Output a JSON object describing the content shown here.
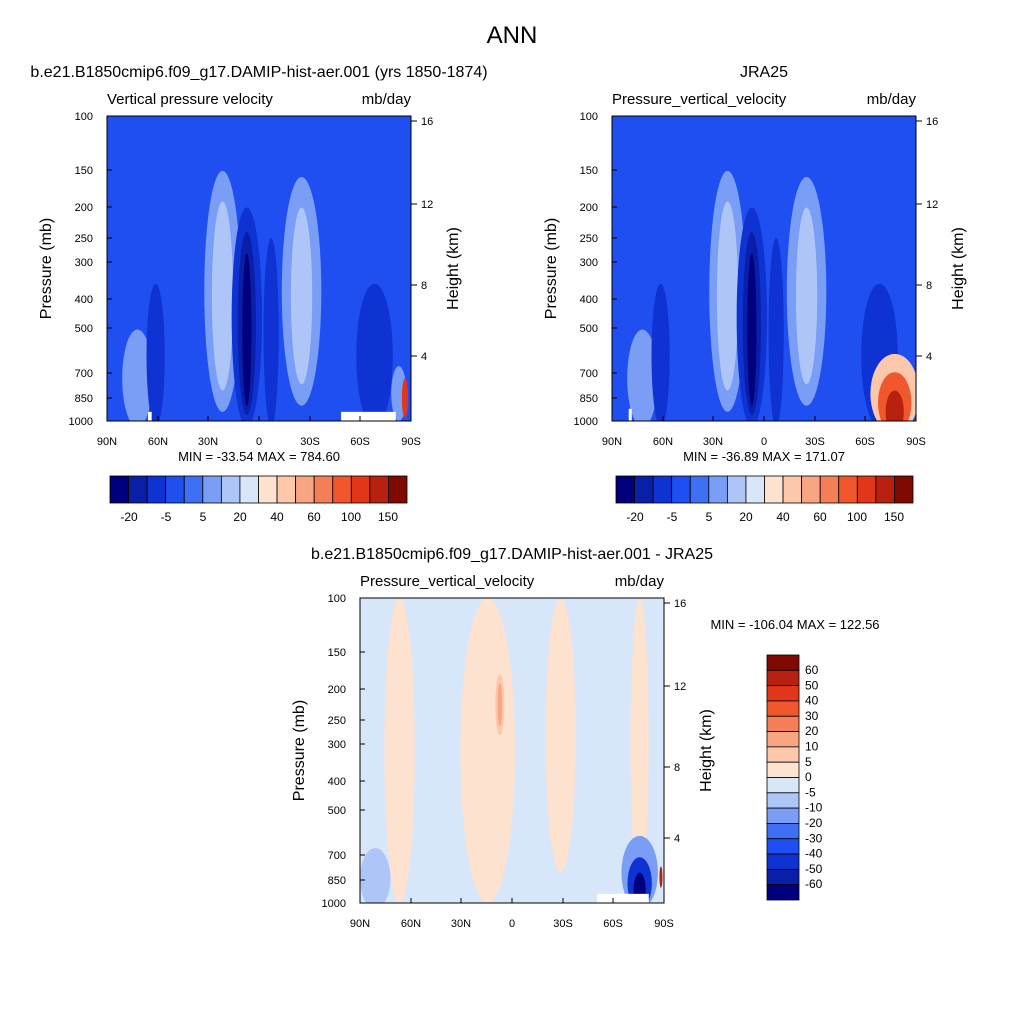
{
  "figure_title": "ANN",
  "panels": [
    {
      "title": "b.e21.B1850cmip6.f09_g17.DAMIP-hist-aer.001 (yrs 1850-1874)",
      "left_label": "Vertical pressure velocity",
      "right_label": "mb/day",
      "stats": "MIN = -33.54  MAX = 784.60",
      "colorbar_labels": [
        "-20",
        "-5",
        "5",
        "20",
        "40",
        "60",
        "100",
        "150"
      ]
    },
    {
      "title": "JRA25",
      "left_label": "Pressure_vertical_velocity",
      "right_label": "mb/day",
      "stats": "MIN = -36.89  MAX = 171.07",
      "colorbar_labels": [
        "-20",
        "-5",
        "5",
        "20",
        "40",
        "60",
        "100",
        "150"
      ]
    },
    {
      "title": "b.e21.B1850cmip6.f09_g17.DAMIP-hist-aer.001 - JRA25",
      "left_label": "Pressure_vertical_velocity",
      "right_label": "mb/day",
      "stats": "MIN = -106.04  MAX = 122.56",
      "colorbar_labels": [
        "60",
        "50",
        "40",
        "30",
        "20",
        "10",
        "5",
        "0",
        "-5",
        "-10",
        "-20",
        "-30",
        "-40",
        "-50",
        "-60"
      ]
    }
  ],
  "colors": {
    "abs_scale": [
      "#00007f",
      "#0a1fa8",
      "#0f32d2",
      "#1f4ff0",
      "#3f6ff5",
      "#7a9df6",
      "#adc6f7",
      "#d7e6f8",
      "#fde2d0",
      "#fcc7ab",
      "#f8a583",
      "#f47e56",
      "#f0572d",
      "#e2361b",
      "#b8200f",
      "#7f0a02"
    ],
    "diff_scale": [
      "#00007f",
      "#0a1fa8",
      "#0f32d2",
      "#1f4ff0",
      "#3f6ff5",
      "#7a9df6",
      "#adc6f7",
      "#d7e6f8",
      "#fde2d0",
      "#fcc7ab",
      "#f8a583",
      "#f47e56",
      "#f0572d",
      "#e2361b",
      "#b8200f",
      "#7f0a02"
    ]
  },
  "chart_data": [
    {
      "type": "heatmap",
      "title": "b.e21.B1850cmip6.f09_g17.DAMIP-hist-aer.001 (yrs 1850-1874)",
      "xlabel": "",
      "ylabel": "Pressure (mb)",
      "y2label": "Height (km)",
      "x_ticks": [
        "90N",
        "60N",
        "30N",
        "0",
        "30S",
        "60S",
        "90S"
      ],
      "y_ticks": [
        "100",
        "150",
        "200",
        "250",
        "300",
        "400",
        "500",
        "700",
        "850",
        "1000"
      ],
      "y2_ticks": [
        "16",
        "12",
        "8",
        "4"
      ],
      "x_range": [
        90,
        -90
      ],
      "y_range": [
        1000,
        100
      ],
      "y_scale": "log",
      "min": -33.54,
      "max": 784.6,
      "levels": [
        -35,
        -30,
        -25,
        -20,
        -15,
        -10,
        -5,
        0,
        5,
        10,
        15,
        20,
        30,
        40,
        50,
        60,
        70,
        80,
        100,
        125,
        150
      ],
      "colorbar_levels": [
        "-20",
        "-5",
        "5",
        "20",
        "40",
        "60",
        "100",
        "150"
      ]
    },
    {
      "type": "heatmap",
      "title": "JRA25",
      "xlabel": "",
      "ylabel": "Pressure (mb)",
      "y2label": "Height (km)",
      "x_ticks": [
        "90N",
        "60N",
        "30N",
        "0",
        "30S",
        "60S",
        "90S"
      ],
      "y_ticks": [
        "100",
        "150",
        "200",
        "250",
        "300",
        "400",
        "500",
        "700",
        "850",
        "1000"
      ],
      "y2_ticks": [
        "16",
        "12",
        "8",
        "4"
      ],
      "x_range": [
        90,
        -90
      ],
      "y_range": [
        1000,
        100
      ],
      "y_scale": "log",
      "min": -36.89,
      "max": 171.07,
      "colorbar_levels": [
        "-20",
        "-5",
        "5",
        "20",
        "40",
        "60",
        "100",
        "150"
      ]
    },
    {
      "type": "heatmap",
      "title": "b.e21.B1850cmip6.f09_g17.DAMIP-hist-aer.001 - JRA25",
      "xlabel": "",
      "ylabel": "Pressure (mb)",
      "y2label": "Height (km)",
      "x_ticks": [
        "90N",
        "60N",
        "30N",
        "0",
        "30S",
        "60S",
        "90S"
      ],
      "y_ticks": [
        "100",
        "150",
        "200",
        "250",
        "300",
        "400",
        "500",
        "700",
        "850",
        "1000"
      ],
      "y2_ticks": [
        "16",
        "12",
        "8",
        "4"
      ],
      "x_range": [
        90,
        -90
      ],
      "y_range": [
        1000,
        100
      ],
      "y_scale": "log",
      "min": -106.04,
      "max": 122.56,
      "colorbar_levels": [
        "60",
        "50",
        "40",
        "30",
        "20",
        "10",
        "5",
        "0",
        "-5",
        "-10",
        "-20",
        "-30",
        "-40",
        "-50",
        "-60"
      ]
    }
  ]
}
